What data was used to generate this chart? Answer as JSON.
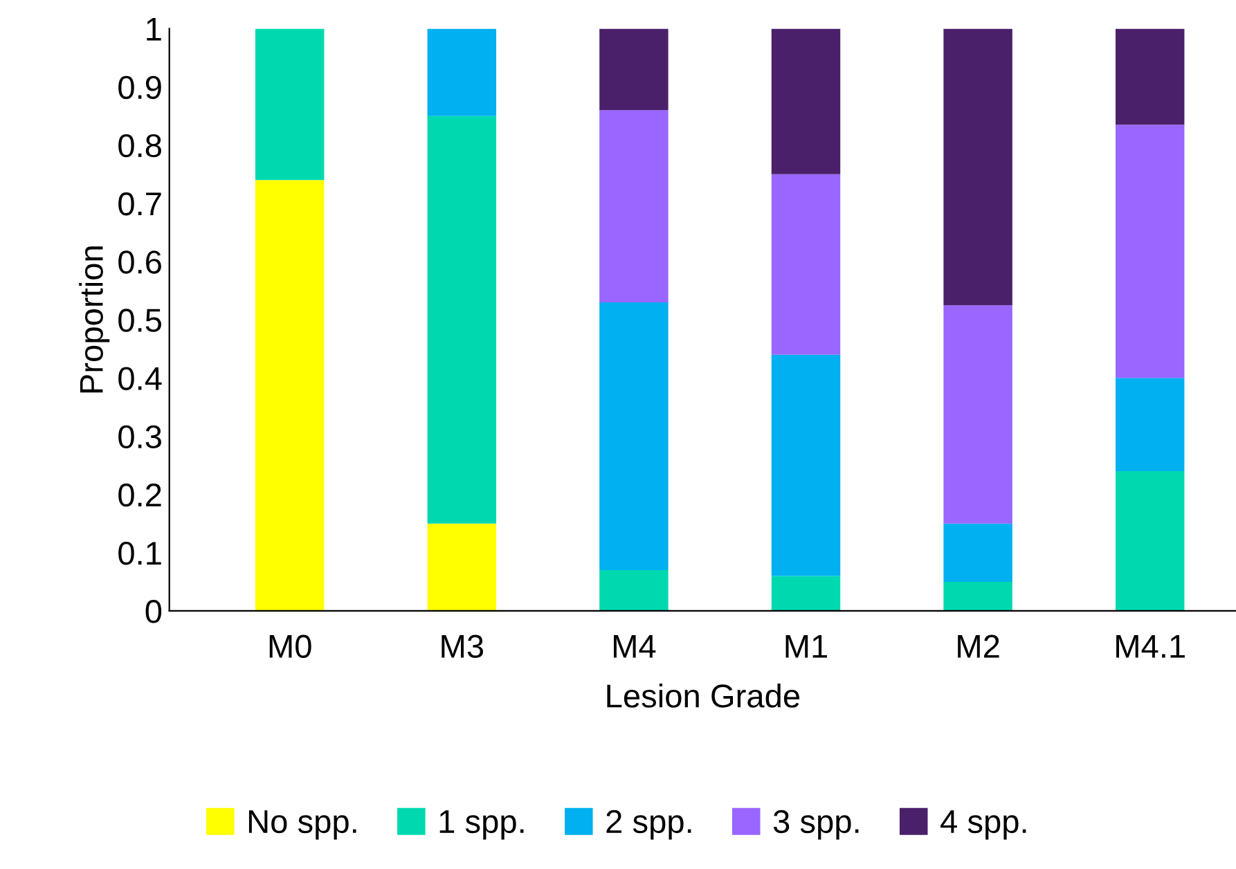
{
  "chart_data": {
    "type": "bar",
    "stacked": true,
    "xlabel": "Lesion Grade",
    "ylabel": "Proportion",
    "categories": [
      "M0",
      "M3",
      "M4",
      "M1",
      "M2",
      "M4.1"
    ],
    "series": [
      {
        "name": "No spp.",
        "color": "#ffff00",
        "values": [
          0.74,
          0.15,
          0,
          0,
          0,
          0
        ]
      },
      {
        "name": "1 spp.",
        "color": "#00d9b0",
        "values": [
          0.26,
          0.7,
          0.07,
          0.06,
          0.05,
          0.24
        ]
      },
      {
        "name": "2 spp.",
        "color": "#00b0f0",
        "values": [
          0,
          0.15,
          0.46,
          0.38,
          0.1,
          0.16
        ]
      },
      {
        "name": "3 spp.",
        "color": "#9966ff",
        "values": [
          0,
          0,
          0.33,
          0.31,
          0.375,
          0.435
        ]
      },
      {
        "name": "4 spp.",
        "color": "#4b206b",
        "values": [
          0,
          0,
          0.14,
          0.25,
          0.475,
          0.165
        ]
      }
    ],
    "ylim": [
      0,
      1
    ],
    "yticks": [
      0,
      0.1,
      0.2,
      0.3,
      0.4,
      0.5,
      0.6,
      0.7,
      0.8,
      0.9,
      1
    ],
    "grid": false,
    "legend": "bottom"
  }
}
